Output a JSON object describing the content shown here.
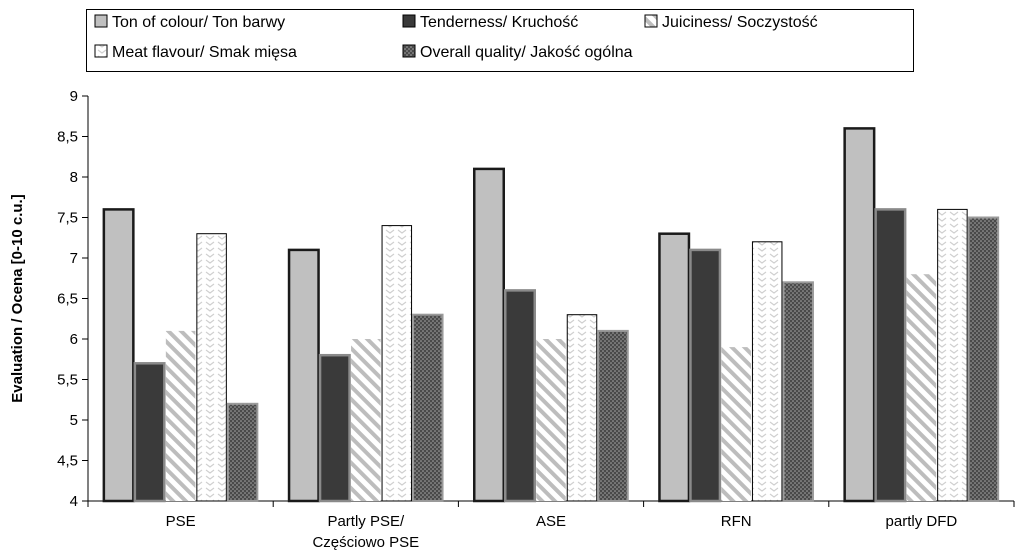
{
  "chart_data": {
    "type": "bar",
    "title": "",
    "ylabel": "Evaluation / Ocena [0-10 c.u.]",
    "xlabel": "",
    "ylim": [
      4,
      9
    ],
    "yticks": [
      "4",
      "4,5",
      "5",
      "5,5",
      "6",
      "6,5",
      "7",
      "7,5",
      "8",
      "8,5",
      "9"
    ],
    "grid": false,
    "legend_position": "top",
    "categories": [
      [
        "PSE"
      ],
      [
        "Partly PSE/",
        "Częściowo PSE"
      ],
      [
        "ASE"
      ],
      [
        "RFN"
      ],
      [
        "partly DFD"
      ]
    ],
    "series": [
      {
        "name": "Ton of colour/ Ton barwy",
        "pattern": "light-gray",
        "values": [
          7.6,
          7.1,
          8.1,
          7.3,
          8.6
        ]
      },
      {
        "name": "Tenderness/ Kruchość",
        "pattern": "dark-solid",
        "values": [
          5.7,
          5.8,
          6.6,
          7.1,
          7.6
        ]
      },
      {
        "name": "Juiciness/ Soczystość",
        "pattern": "diagonal-hatch",
        "values": [
          6.1,
          6.0,
          6.0,
          5.9,
          6.8
        ]
      },
      {
        "name": "Meat flavour/  Smak mięsa",
        "pattern": "chevron-white",
        "values": [
          7.3,
          7.4,
          6.3,
          7.2,
          7.6
        ]
      },
      {
        "name": "Overall quality/ Jakość ogólna",
        "pattern": "dots-dark",
        "values": [
          5.2,
          6.3,
          6.1,
          6.7,
          7.5
        ]
      }
    ]
  }
}
